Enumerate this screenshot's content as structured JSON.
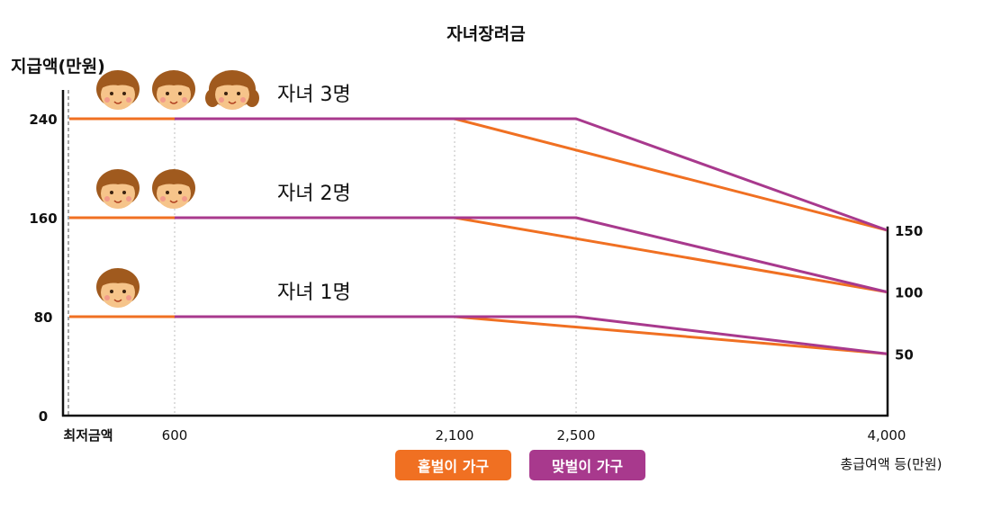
{
  "chart_data": {
    "type": "line",
    "title": "자녀장려금",
    "ylabel": "지급액(만원)",
    "xlabel": "총급여액 등(만원)",
    "x_min_label": "최저금액",
    "ylim": [
      0,
      270
    ],
    "xlim": [
      0,
      4000
    ],
    "y_ticks": [
      0,
      80,
      160,
      240
    ],
    "x_ticks": [
      600,
      2100,
      2500,
      4000
    ],
    "x_tick_labels": [
      "600",
      "2,100",
      "2,500",
      "4,000"
    ],
    "right_ticks": [
      150,
      100,
      50
    ],
    "colors": {
      "single": "#f07022",
      "dual": "#a8398d"
    },
    "series": [
      {
        "name": "홑벌이 가구",
        "children": "자녀 3명",
        "points": [
          [
            0,
            240
          ],
          [
            2100,
            240
          ],
          [
            4000,
            150
          ]
        ]
      },
      {
        "name": "맞벌이 가구",
        "children": "자녀 3명",
        "points": [
          [
            600,
            240
          ],
          [
            2500,
            240
          ],
          [
            4000,
            150
          ]
        ]
      },
      {
        "name": "홑벌이 가구",
        "children": "자녀 2명",
        "points": [
          [
            0,
            160
          ],
          [
            2100,
            160
          ],
          [
            4000,
            100
          ]
        ]
      },
      {
        "name": "맞벌이 가구",
        "children": "자녀 2명",
        "points": [
          [
            600,
            160
          ],
          [
            2500,
            160
          ],
          [
            4000,
            100
          ]
        ]
      },
      {
        "name": "홑벌이 가구",
        "children": "자녀 1명",
        "points": [
          [
            0,
            80
          ],
          [
            2100,
            80
          ],
          [
            4000,
            50
          ]
        ]
      },
      {
        "name": "맞벌이 가구",
        "children": "자녀 1명",
        "points": [
          [
            600,
            80
          ],
          [
            2500,
            80
          ],
          [
            4000,
            50
          ]
        ]
      }
    ],
    "annotations": [
      {
        "text": "자녀 3명",
        "count": 3,
        "level": 240
      },
      {
        "text": "자녀 2명",
        "count": 2,
        "level": 160
      },
      {
        "text": "자녀 1명",
        "count": 1,
        "level": 80
      }
    ]
  },
  "legend": [
    {
      "label": "홑벌이 가구",
      "color": "#f07022"
    },
    {
      "label": "맞벌이 가구",
      "color": "#a8398d"
    }
  ]
}
